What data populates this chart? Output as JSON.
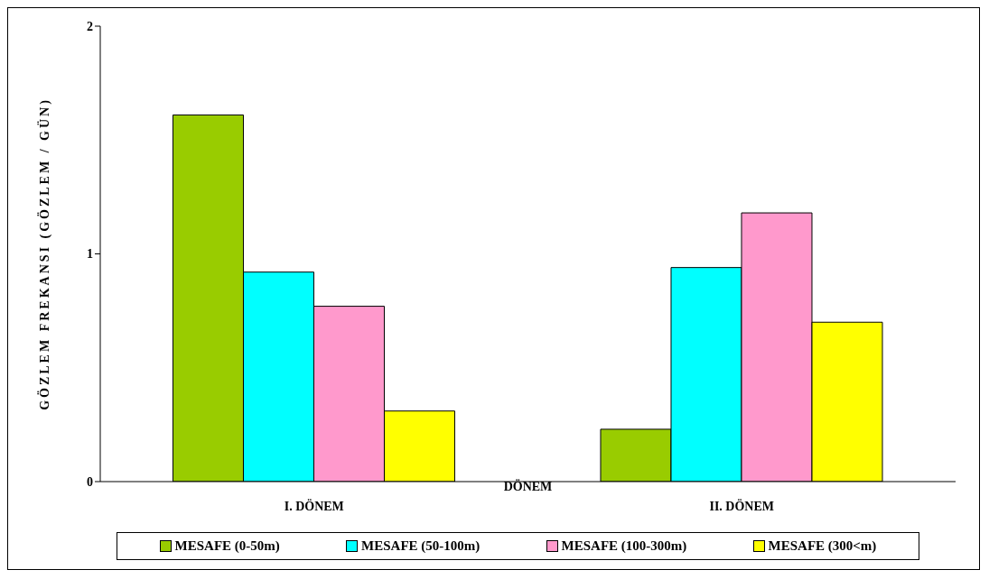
{
  "chart_data": {
    "type": "bar",
    "xlabel": "DÖNEM",
    "ylabel": "GÖZLEM FREKANSI (GÖZLEM / GÜN)",
    "categories": [
      "I. DÖNEM",
      "II. DÖNEM"
    ],
    "series": [
      {
        "name": "MESAFE (0-50m)",
        "color": "#99cc00",
        "values": [
          1.61,
          0.23
        ]
      },
      {
        "name": "MESAFE (50-100m)",
        "color": "#00ffff",
        "values": [
          0.92,
          0.94
        ]
      },
      {
        "name": "MESAFE (100-300m)",
        "color": "#ff99cc",
        "values": [
          0.77,
          1.18
        ]
      },
      {
        "name": "MESAFE (300<m)",
        "color": "#ffff00",
        "values": [
          0.31,
          0.7
        ]
      }
    ],
    "ylim": [
      0,
      2
    ],
    "yticks": [
      0,
      1,
      2
    ],
    "grid": false,
    "legend": "bottom"
  }
}
